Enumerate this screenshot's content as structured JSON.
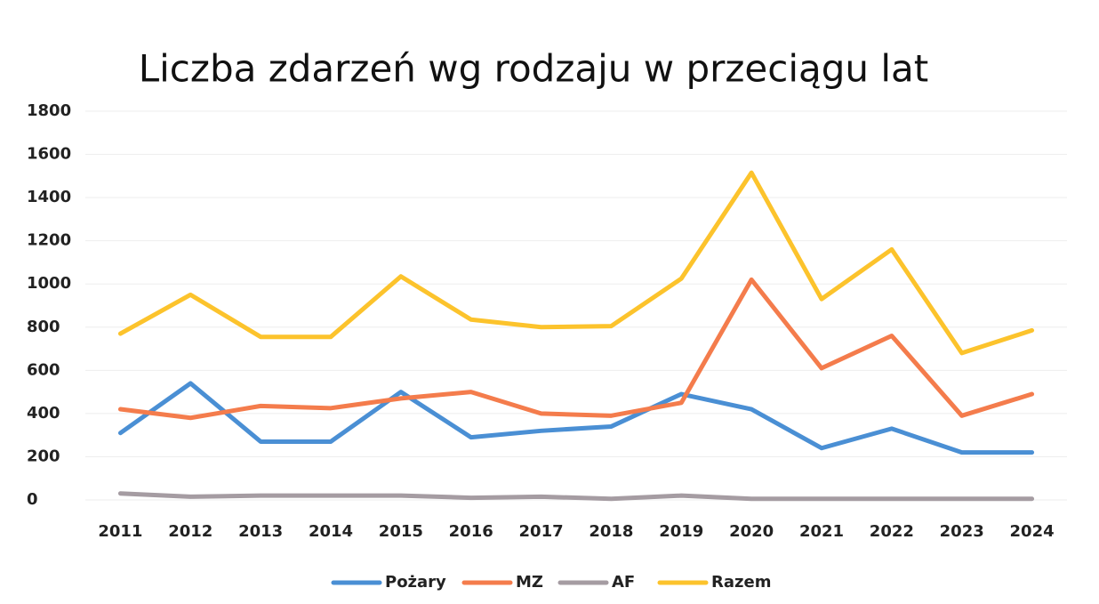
{
  "chart_data": {
    "type": "line",
    "title": "Liczba zdarzeń wg rodzaju w przeciągu lat",
    "categories": [
      "2011",
      "2012",
      "2013",
      "2014",
      "2015",
      "2016",
      "2017",
      "2018",
      "2019",
      "2020",
      "2021",
      "2022",
      "2023",
      "2024"
    ],
    "series": [
      {
        "name": "Pożary",
        "color": "#4a8fd4",
        "values": [
          310,
          540,
          270,
          270,
          500,
          290,
          320,
          340,
          490,
          420,
          240,
          330,
          220,
          220
        ]
      },
      {
        "name": "MZ",
        "color": "#f47c4c",
        "values": [
          420,
          380,
          435,
          425,
          470,
          500,
          400,
          390,
          450,
          1020,
          610,
          760,
          390,
          490
        ]
      },
      {
        "name": "AF",
        "color": "#a59ca2",
        "values": [
          30,
          15,
          20,
          20,
          20,
          10,
          15,
          5,
          20,
          5,
          5,
          5,
          5,
          5
        ]
      },
      {
        "name": "Razem",
        "color": "#fcc32c",
        "values": [
          770,
          950,
          755,
          755,
          1035,
          835,
          800,
          805,
          1025,
          1515,
          930,
          1160,
          680,
          785
        ]
      }
    ],
    "ylim": [
      0,
      1800
    ],
    "yticks": [
      0,
      200,
      400,
      600,
      800,
      1000,
      1200,
      1400,
      1600,
      1800
    ],
    "grid": true,
    "legend": "bottom"
  }
}
